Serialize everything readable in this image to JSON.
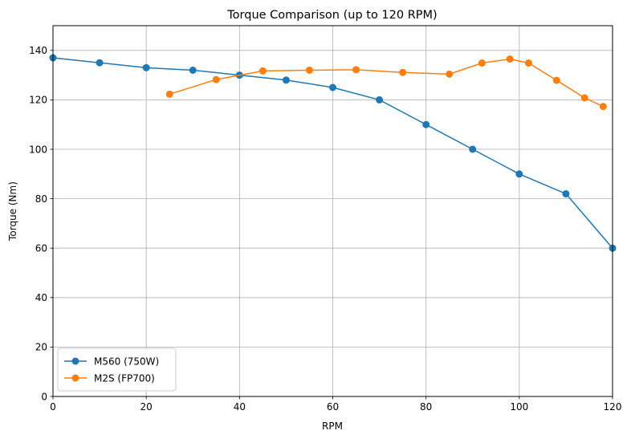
{
  "chart_data": {
    "type": "line",
    "title": "Torque Comparison (up to 120 RPM)",
    "xlabel": "RPM",
    "ylabel": "Torque (Nm)",
    "xlim": [
      0,
      120
    ],
    "ylim": [
      0,
      150
    ],
    "xticks": [
      0,
      20,
      40,
      60,
      80,
      100,
      120
    ],
    "yticks": [
      0,
      20,
      40,
      60,
      80,
      100,
      120,
      140
    ],
    "grid": true,
    "legend_position": "lower-left",
    "series": [
      {
        "name": "M560 (750W)",
        "color": "#1f77b4",
        "marker": "circle",
        "x": [
          0,
          10,
          20,
          30,
          40,
          50,
          60,
          70,
          80,
          90,
          100,
          110,
          120
        ],
        "y": [
          137,
          135,
          133,
          132,
          130,
          128,
          125,
          120,
          110,
          100,
          90,
          82,
          60
        ]
      },
      {
        "name": "M2S (FP700)",
        "color": "#ff7f0e",
        "marker": "circle",
        "x": [
          25,
          35,
          45,
          55,
          65,
          75,
          85,
          92,
          98,
          102,
          108,
          114,
          118
        ],
        "y": [
          122.3,
          128.2,
          131.7,
          132.0,
          132.2,
          131.1,
          130.4,
          134.9,
          136.5,
          134.9,
          127.9,
          120.8,
          117.3
        ]
      }
    ]
  }
}
